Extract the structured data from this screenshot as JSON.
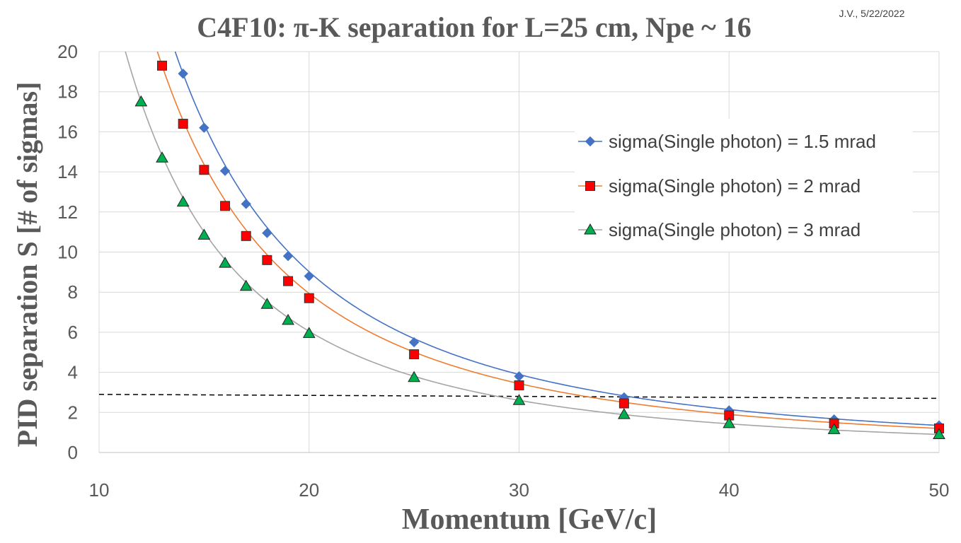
{
  "chart_data": {
    "type": "scatter",
    "title": "C4F10: π-K separation for L=25 cm, Npe ~ 16",
    "note": "J.V., 5/22/2022",
    "xlabel": "Momentum [GeV/c]",
    "ylabel": "PID separation S [# of sigmas]",
    "xlim": [
      10,
      50
    ],
    "ylim": [
      0,
      20
    ],
    "xticks": [
      10,
      20,
      30,
      40,
      50
    ],
    "yticks": [
      0,
      2,
      4,
      6,
      8,
      10,
      12,
      14,
      16,
      18,
      20
    ],
    "grid": true,
    "legend_position": "right",
    "threshold_line": {
      "style": "dashed",
      "color": "#000000",
      "values": [
        [
          10,
          2.9
        ],
        [
          50,
          2.7
        ]
      ]
    },
    "series": [
      {
        "name": "sigma(Single photon) = 1.5 mrad",
        "marker": "diamond",
        "color": "#4472C4",
        "x": [
          14,
          15,
          16,
          17,
          18,
          19,
          20,
          25,
          30,
          35,
          40,
          45,
          50
        ],
        "y": [
          18.9,
          16.2,
          14.05,
          12.4,
          10.95,
          9.8,
          8.8,
          5.5,
          3.8,
          2.75,
          2.1,
          1.65,
          1.35
        ]
      },
      {
        "name": "sigma(Single photon) = 2 mrad",
        "marker": "square",
        "color": "#ED7D31",
        "fill": "#FF0000",
        "x": [
          13,
          14,
          15,
          16,
          17,
          18,
          19,
          20,
          25,
          30,
          35,
          40,
          45,
          50
        ],
        "y": [
          19.3,
          16.4,
          14.1,
          12.3,
          10.8,
          9.6,
          8.55,
          7.7,
          4.9,
          3.35,
          2.45,
          1.85,
          1.45,
          1.2
        ]
      },
      {
        "name": "sigma(Single photon) = 3 mrad",
        "marker": "triangle",
        "color": "#A5A5A5",
        "fill": "#00B050",
        "x": [
          12,
          13,
          14,
          15,
          16,
          17,
          18,
          19,
          20,
          25,
          30,
          35,
          40,
          45,
          50
        ],
        "y": [
          17.5,
          14.7,
          12.5,
          10.85,
          9.45,
          8.3,
          7.4,
          6.6,
          5.95,
          3.75,
          2.6,
          1.9,
          1.45,
          1.15,
          0.9
        ]
      }
    ]
  }
}
